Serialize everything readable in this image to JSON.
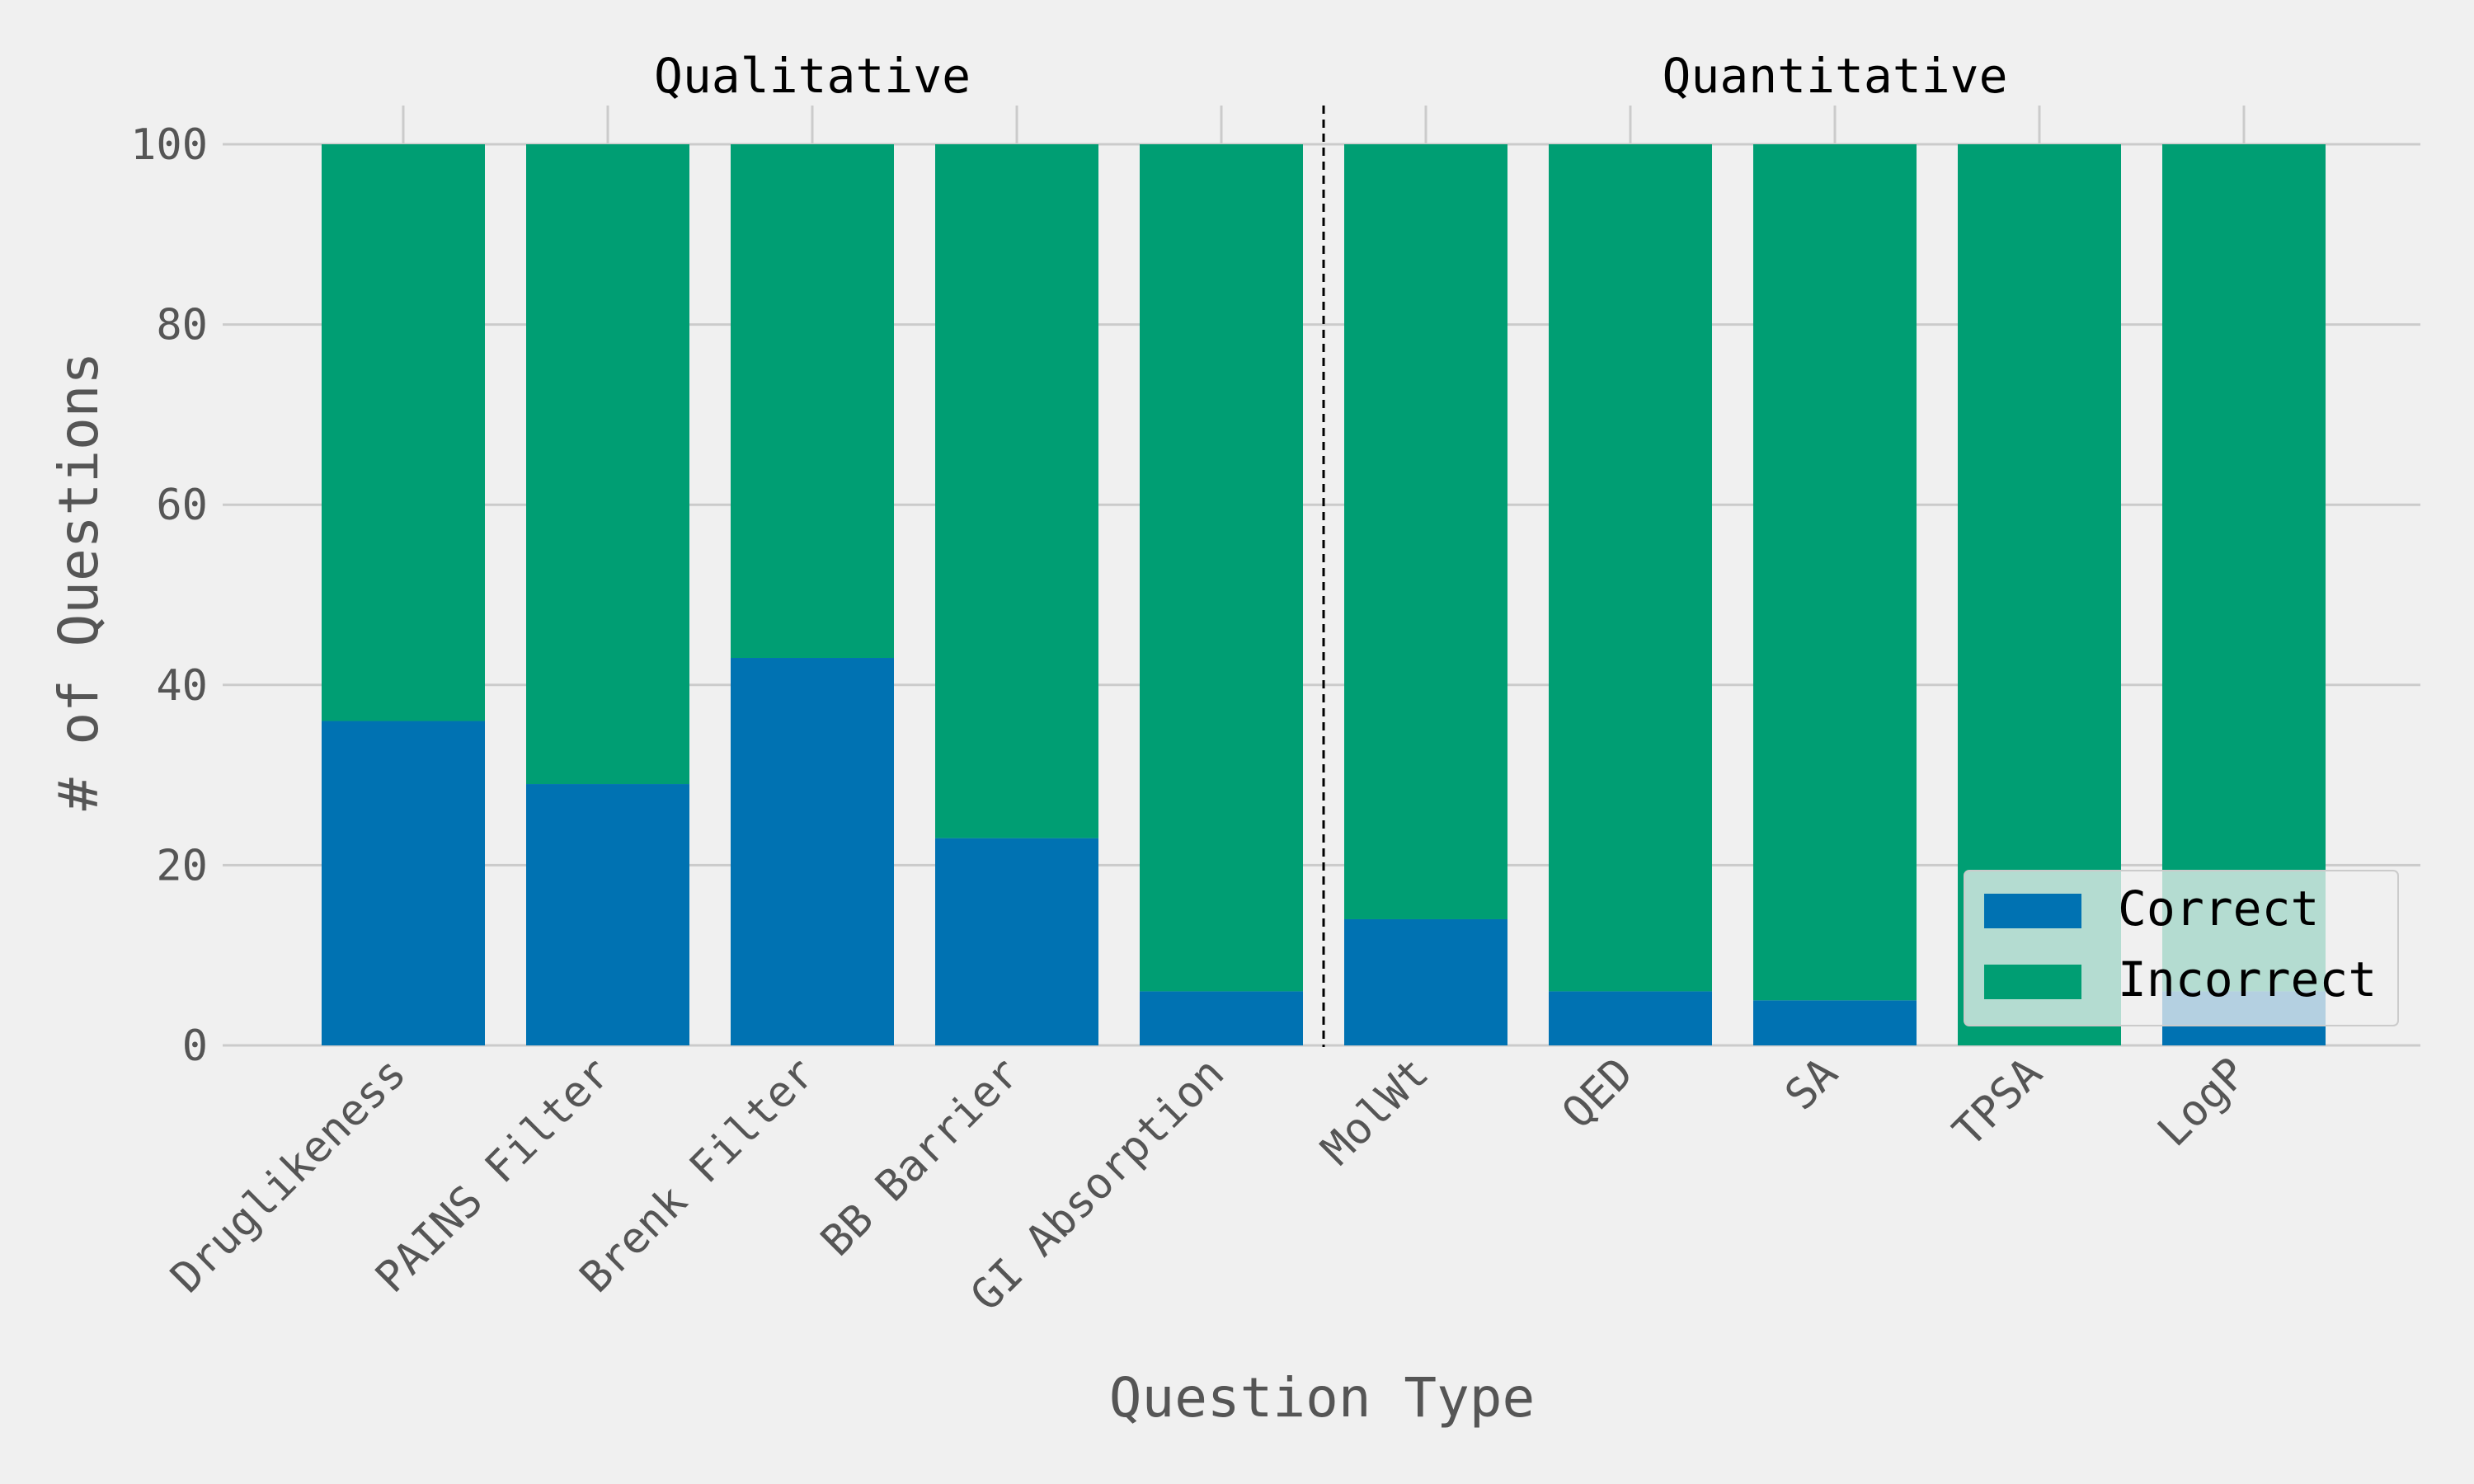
{
  "chart_data": {
    "type": "bar",
    "stacked": true,
    "categories": [
      "Druglikeness",
      "PAINS Filter",
      "Brenk Filter",
      "BB Barrier",
      "GI Absorption",
      "MolWt",
      "QED",
      "SA",
      "TPSA",
      "LogP"
    ],
    "series": [
      {
        "name": "Correct",
        "color": "#0072b2",
        "values": [
          36,
          29,
          43,
          23,
          6,
          14,
          6,
          5,
          0,
          6
        ]
      },
      {
        "name": "Incorrect",
        "color": "#009e73",
        "values": [
          64,
          71,
          57,
          77,
          94,
          86,
          94,
          95,
          100,
          94
        ]
      }
    ],
    "xlabel": "Question Type",
    "ylabel": "# of Questions",
    "ylim": [
      0,
      100
    ],
    "yticks": [
      0,
      20,
      40,
      60,
      80,
      100
    ],
    "grid": true,
    "legend_position": "bottom-right",
    "groups": [
      {
        "label": "Qualitative",
        "start_index": 0,
        "end_index": 4
      },
      {
        "label": "Quantitative",
        "start_index": 5,
        "end_index": 9
      }
    ],
    "group_separator": "dashed-line"
  }
}
